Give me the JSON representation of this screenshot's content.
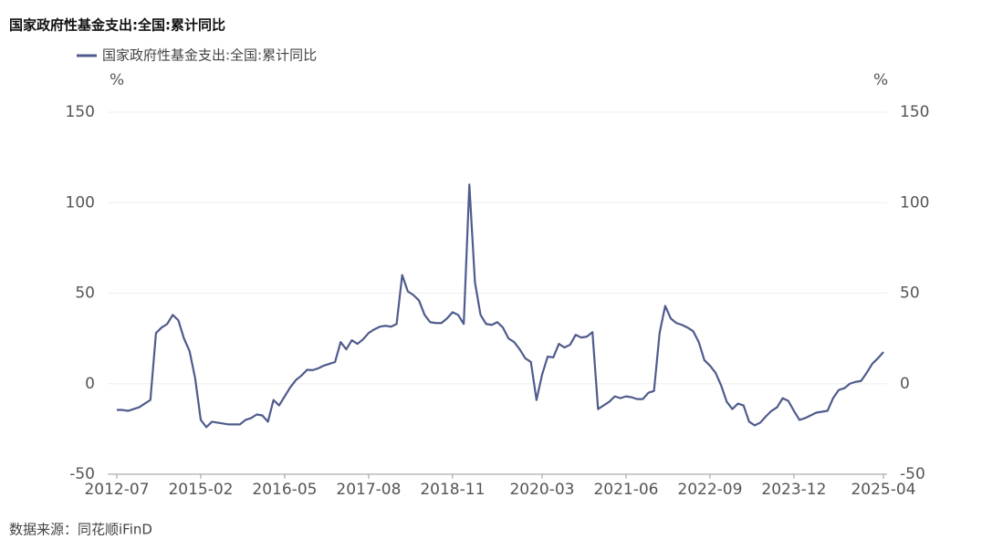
{
  "chart_data": {
    "type": "line",
    "title": "国家政府性基金支出:全国:累计同比",
    "source": "数据来源：同花顺iFinD",
    "yunit": "%",
    "y2unit": "%",
    "categories": [
      "2012-07",
      null,
      null,
      null,
      null,
      null,
      null,
      null,
      null,
      null,
      null,
      null,
      null,
      null,
      null,
      "2015-02",
      null,
      null,
      null,
      null,
      null,
      null,
      null,
      null,
      null,
      null,
      null,
      null,
      null,
      null,
      "2016-05",
      null,
      null,
      null,
      null,
      null,
      null,
      null,
      null,
      null,
      null,
      null,
      null,
      null,
      null,
      "2017-08",
      null,
      null,
      null,
      null,
      null,
      null,
      null,
      null,
      null,
      null,
      null,
      null,
      null,
      null,
      "2018-11",
      null,
      null,
      null,
      null,
      null,
      null,
      null,
      null,
      null,
      null,
      null,
      null,
      null,
      null,
      null,
      "2020-03",
      null,
      null,
      null,
      null,
      null,
      null,
      null,
      null,
      null,
      null,
      null,
      null,
      null,
      null,
      "2021-06",
      null,
      null,
      null,
      null,
      null,
      null,
      null,
      null,
      null,
      null,
      null,
      null,
      null,
      null,
      "2022-09",
      null,
      null,
      null,
      null,
      null,
      null,
      null,
      null,
      null,
      null,
      null,
      null,
      null,
      null,
      "2023-12",
      null,
      null,
      null,
      null,
      null,
      null,
      null,
      null,
      null,
      null,
      null,
      null,
      null,
      null,
      null,
      "2025-04"
    ],
    "series": [
      {
        "name": "国家政府性基金支出:全国:累计同比",
        "color": "#4f5b8c",
        "values": [
          -14.5,
          -14.5,
          -15,
          -14,
          -13,
          -11,
          -9,
          28,
          31,
          33,
          38,
          35,
          25,
          18,
          3,
          -20,
          -24,
          -21,
          -21.5,
          -22,
          -22.5,
          -22.5,
          -22.5,
          -20,
          -19,
          -17,
          -17.5,
          -21,
          -9,
          -12,
          -7,
          -2,
          2,
          4.5,
          7.7,
          7.5,
          8.5,
          10,
          11,
          12,
          23,
          19,
          24,
          22,
          24.5,
          28,
          30,
          31.5,
          32,
          31.5,
          33,
          60,
          51,
          49,
          46,
          38,
          34,
          33.5,
          33.5,
          36,
          39.5,
          38,
          33,
          110,
          56,
          38,
          33,
          32.5,
          34,
          31,
          25,
          23,
          19,
          14,
          12,
          -9,
          5,
          15,
          14.5,
          22,
          20,
          21.5,
          27,
          25.5,
          26,
          28.5,
          -14,
          -12,
          -10,
          -7,
          -8,
          -7,
          -7.5,
          -8.5,
          -8.5,
          -5,
          -4,
          28,
          43,
          36,
          33.5,
          32.5,
          31,
          29,
          23,
          13,
          10,
          6,
          -1,
          -10,
          -14,
          -11,
          -12,
          -21,
          -23,
          -21.5,
          -18,
          -15,
          -13,
          -8,
          -9.5,
          -15,
          -20,
          -19,
          -17.5,
          -16,
          -15.5,
          -15,
          -8,
          -3.5,
          -2.5,
          0,
          1,
          1.5,
          6,
          11,
          14,
          17.5
        ]
      }
    ],
    "ylim": [
      -50,
      150
    ],
    "yticks": [
      -50,
      0,
      50,
      100,
      150
    ],
    "y2lim": [
      -50,
      150
    ],
    "y2ticks": [
      -50,
      0,
      50,
      100,
      150
    ],
    "grid": true,
    "legend": "top-left"
  }
}
